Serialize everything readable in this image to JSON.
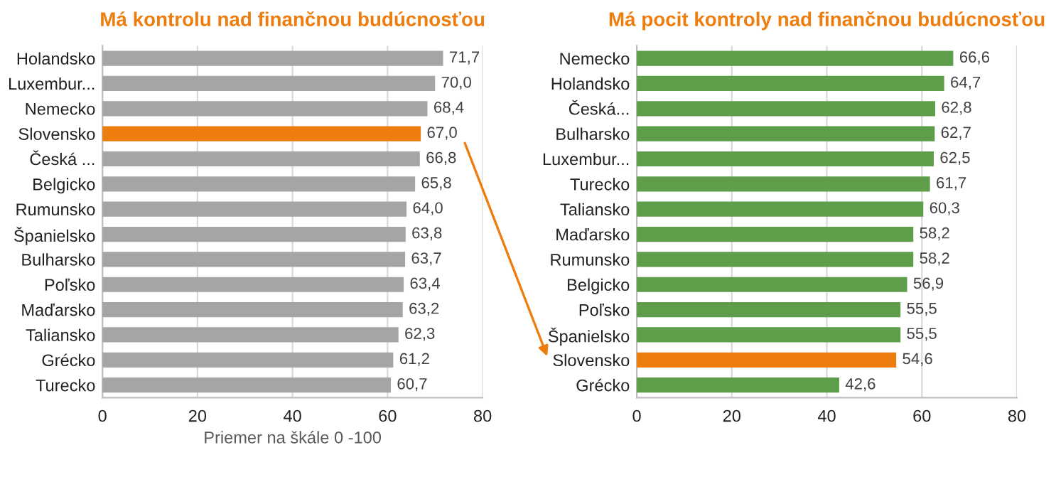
{
  "chart_data": [
    {
      "type": "bar",
      "orientation": "horizontal",
      "title": "Má kontrolu nad finančnou budúcnosťou",
      "xlabel": "Priemer na škále 0 -100",
      "categories": [
        "Holandsko",
        "Luxembur...",
        "Nemecko",
        "Slovensko",
        "Česká ...",
        "Belgicko",
        "Rumunsko",
        "Španielsko",
        "Bulharsko",
        "Poľsko",
        "Maďarsko",
        "Taliansko",
        "Grécko",
        "Turecko"
      ],
      "values": [
        71.7,
        70.0,
        68.4,
        67.0,
        66.8,
        65.8,
        64.0,
        63.8,
        63.7,
        63.4,
        63.2,
        62.3,
        61.2,
        60.7
      ],
      "value_labels": [
        "71,7",
        "70,0",
        "68,4",
        "67,0",
        "66,8",
        "65,8",
        "64,0",
        "63,8",
        "63,7",
        "63,4",
        "63,2",
        "62,3",
        "61,2",
        "60,7"
      ],
      "colors": [
        "#a5a5a5",
        "#a5a5a5",
        "#a5a5a5",
        "#ed7d0e",
        "#a5a5a5",
        "#a5a5a5",
        "#a5a5a5",
        "#a5a5a5",
        "#a5a5a5",
        "#a5a5a5",
        "#a5a5a5",
        "#a5a5a5",
        "#a5a5a5",
        "#a5a5a5"
      ],
      "xlim": [
        0,
        80
      ],
      "xticks": [
        0,
        20,
        40,
        60,
        80
      ],
      "grid": "x"
    },
    {
      "type": "bar",
      "orientation": "horizontal",
      "title": "Má pocit kontroly nad finančnou budúcnosťou",
      "categories": [
        "Nemecko",
        "Holandsko",
        "Česká...",
        "Bulharsko",
        "Luxembur...",
        "Turecko",
        "Taliansko",
        "Maďarsko",
        "Rumunsko",
        "Belgicko",
        "Poľsko",
        "Španielsko",
        "Slovensko",
        "Grécko"
      ],
      "values": [
        66.6,
        64.7,
        62.8,
        62.7,
        62.5,
        61.7,
        60.3,
        58.2,
        58.2,
        56.9,
        55.5,
        55.5,
        54.6,
        42.6
      ],
      "value_labels": [
        "66,6",
        "64,7",
        "62,8",
        "62,7",
        "62,5",
        "61,7",
        "60,3",
        "58,2",
        "58,2",
        "56,9",
        "55,5",
        "55,5",
        "54,6",
        "42,6"
      ],
      "colors": [
        "#5e9e4a",
        "#5e9e4a",
        "#5e9e4a",
        "#5e9e4a",
        "#5e9e4a",
        "#5e9e4a",
        "#5e9e4a",
        "#5e9e4a",
        "#5e9e4a",
        "#5e9e4a",
        "#5e9e4a",
        "#5e9e4a",
        "#ed7d0e",
        "#5e9e4a"
      ],
      "xlim": [
        0,
        80
      ],
      "xticks": [
        0,
        20,
        40,
        60,
        80
      ],
      "grid": "x"
    }
  ]
}
